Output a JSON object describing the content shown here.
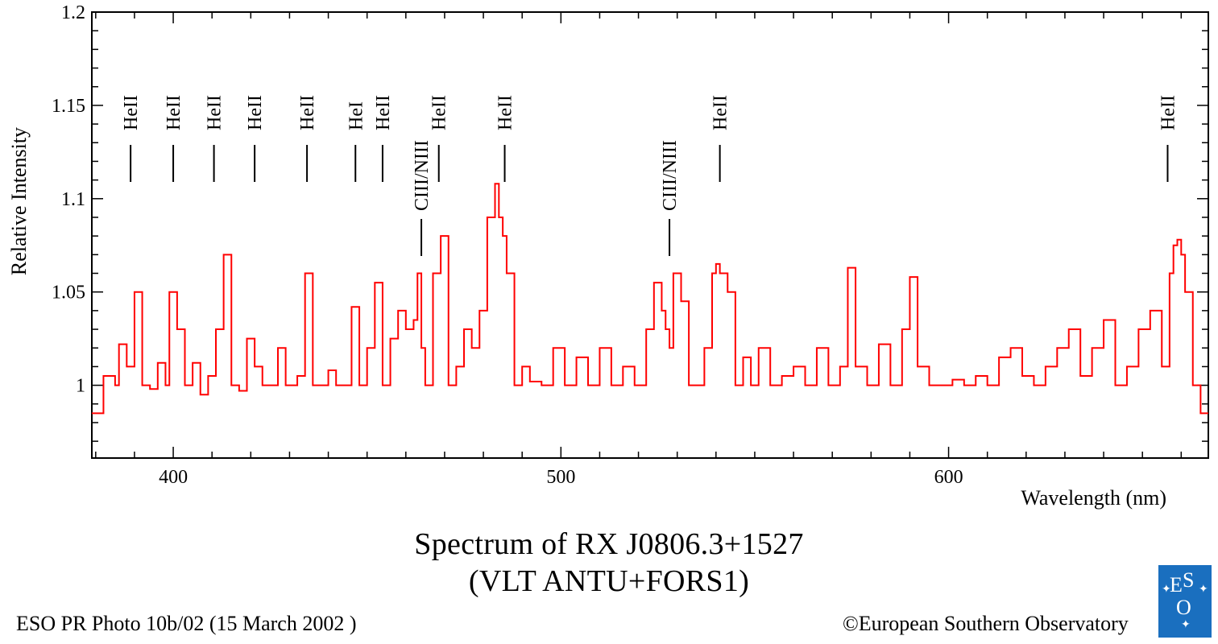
{
  "chart_data": {
    "type": "line",
    "title": "Spectrum of RX J0806.3+1527",
    "subtitle": "(VLT ANTU+FORS1)",
    "xlabel": "Wavelength (nm)",
    "ylabel": "Relative Intensity",
    "xlim": [
      379,
      667
    ],
    "ylim": [
      0.961,
      1.2
    ],
    "xticks": [
      400,
      500,
      600
    ],
    "yticks": [
      1,
      1.05,
      1.1,
      1.15,
      1.2
    ],
    "ytick_labels": [
      "1",
      "1.05",
      "1.1",
      "1.15",
      "1.2"
    ],
    "grid": false,
    "series": [
      {
        "color": "#ff0000",
        "x": [
          379,
          382,
          385,
          386,
          388,
          390,
          392,
          394,
          396,
          398,
          399,
          401,
          403,
          405,
          407,
          409,
          411,
          413,
          415,
          417,
          419,
          421,
          423,
          425,
          427,
          429,
          432,
          434,
          436,
          438,
          440,
          442,
          444,
          446,
          448,
          450,
          452,
          454,
          456,
          458,
          460,
          462,
          463,
          464,
          465,
          467,
          469,
          471,
          473,
          475,
          477,
          479,
          481,
          483,
          484,
          485,
          486,
          488,
          490,
          492,
          495,
          498,
          501,
          504,
          507,
          510,
          513,
          516,
          519,
          522,
          524,
          526,
          527,
          528,
          529,
          531,
          533,
          535,
          537,
          539,
          540,
          541,
          543,
          545,
          547,
          549,
          551,
          554,
          557,
          560,
          563,
          566,
          569,
          572,
          574,
          576,
          579,
          582,
          585,
          588,
          590,
          592,
          595,
          598,
          601,
          604,
          607,
          610,
          613,
          616,
          619,
          622,
          625,
          628,
          631,
          634,
          637,
          640,
          643,
          646,
          649,
          652,
          655,
          657,
          658,
          659,
          660,
          661,
          663,
          665,
          667
        ],
        "y": [
          0.985,
          1.005,
          1.0,
          1.022,
          1.01,
          1.05,
          1.0,
          0.998,
          1.012,
          1.0,
          1.05,
          1.03,
          1.0,
          1.012,
          0.995,
          1.005,
          1.03,
          1.07,
          1.0,
          0.997,
          1.025,
          1.01,
          1.0,
          1.0,
          1.02,
          1.0,
          1.005,
          1.06,
          1.0,
          1.0,
          1.008,
          1.0,
          1.0,
          1.042,
          1.0,
          1.02,
          1.055,
          1.0,
          1.025,
          1.04,
          1.03,
          1.035,
          1.06,
          1.02,
          1.0,
          1.06,
          1.08,
          1.0,
          1.01,
          1.03,
          1.02,
          1.04,
          1.09,
          1.108,
          1.09,
          1.08,
          1.06,
          1.0,
          1.01,
          1.002,
          1.0,
          1.02,
          1.0,
          1.015,
          1.0,
          1.02,
          1.0,
          1.01,
          1.0,
          1.03,
          1.055,
          1.04,
          1.03,
          1.02,
          1.06,
          1.045,
          1.0,
          1.0,
          1.02,
          1.06,
          1.065,
          1.06,
          1.05,
          1.0,
          1.015,
          1.0,
          1.02,
          1.0,
          1.005,
          1.01,
          1.0,
          1.02,
          1.0,
          1.01,
          1.063,
          1.01,
          1.0,
          1.022,
          1.0,
          1.03,
          1.058,
          1.01,
          1.0,
          1.0,
          1.003,
          1.0,
          1.005,
          1.0,
          1.015,
          1.02,
          1.005,
          1.0,
          1.01,
          1.02,
          1.03,
          1.005,
          1.02,
          1.035,
          1.0,
          1.01,
          1.03,
          1.04,
          1.01,
          1.06,
          1.075,
          1.078,
          1.07,
          1.05,
          1.0,
          0.985,
          0.985
        ]
      }
    ],
    "annotations": [
      {
        "label": "HeII",
        "x": 389
      },
      {
        "label": "HeII",
        "x": 400
      },
      {
        "label": "HeII",
        "x": 410.5
      },
      {
        "label": "HeII",
        "x": 421
      },
      {
        "label": "HeII",
        "x": 434.5
      },
      {
        "label": "HeI",
        "x": 447
      },
      {
        "label": "HeII",
        "x": 454
      },
      {
        "label": "CIII/NIII",
        "x": 464
      },
      {
        "label": "HeII",
        "x": 468.5
      },
      {
        "label": "HeII",
        "x": 485.5
      },
      {
        "label": "CIII/NIII",
        "x": 528
      },
      {
        "label": "HeII",
        "x": 541
      },
      {
        "label": "HeII",
        "x": 656.5
      }
    ]
  },
  "footer": {
    "photo_id": "ESO PR Photo 10b/02 (15 March 2002 )",
    "copyright": "©European Southern Observatory",
    "logo_text": "ESO"
  }
}
